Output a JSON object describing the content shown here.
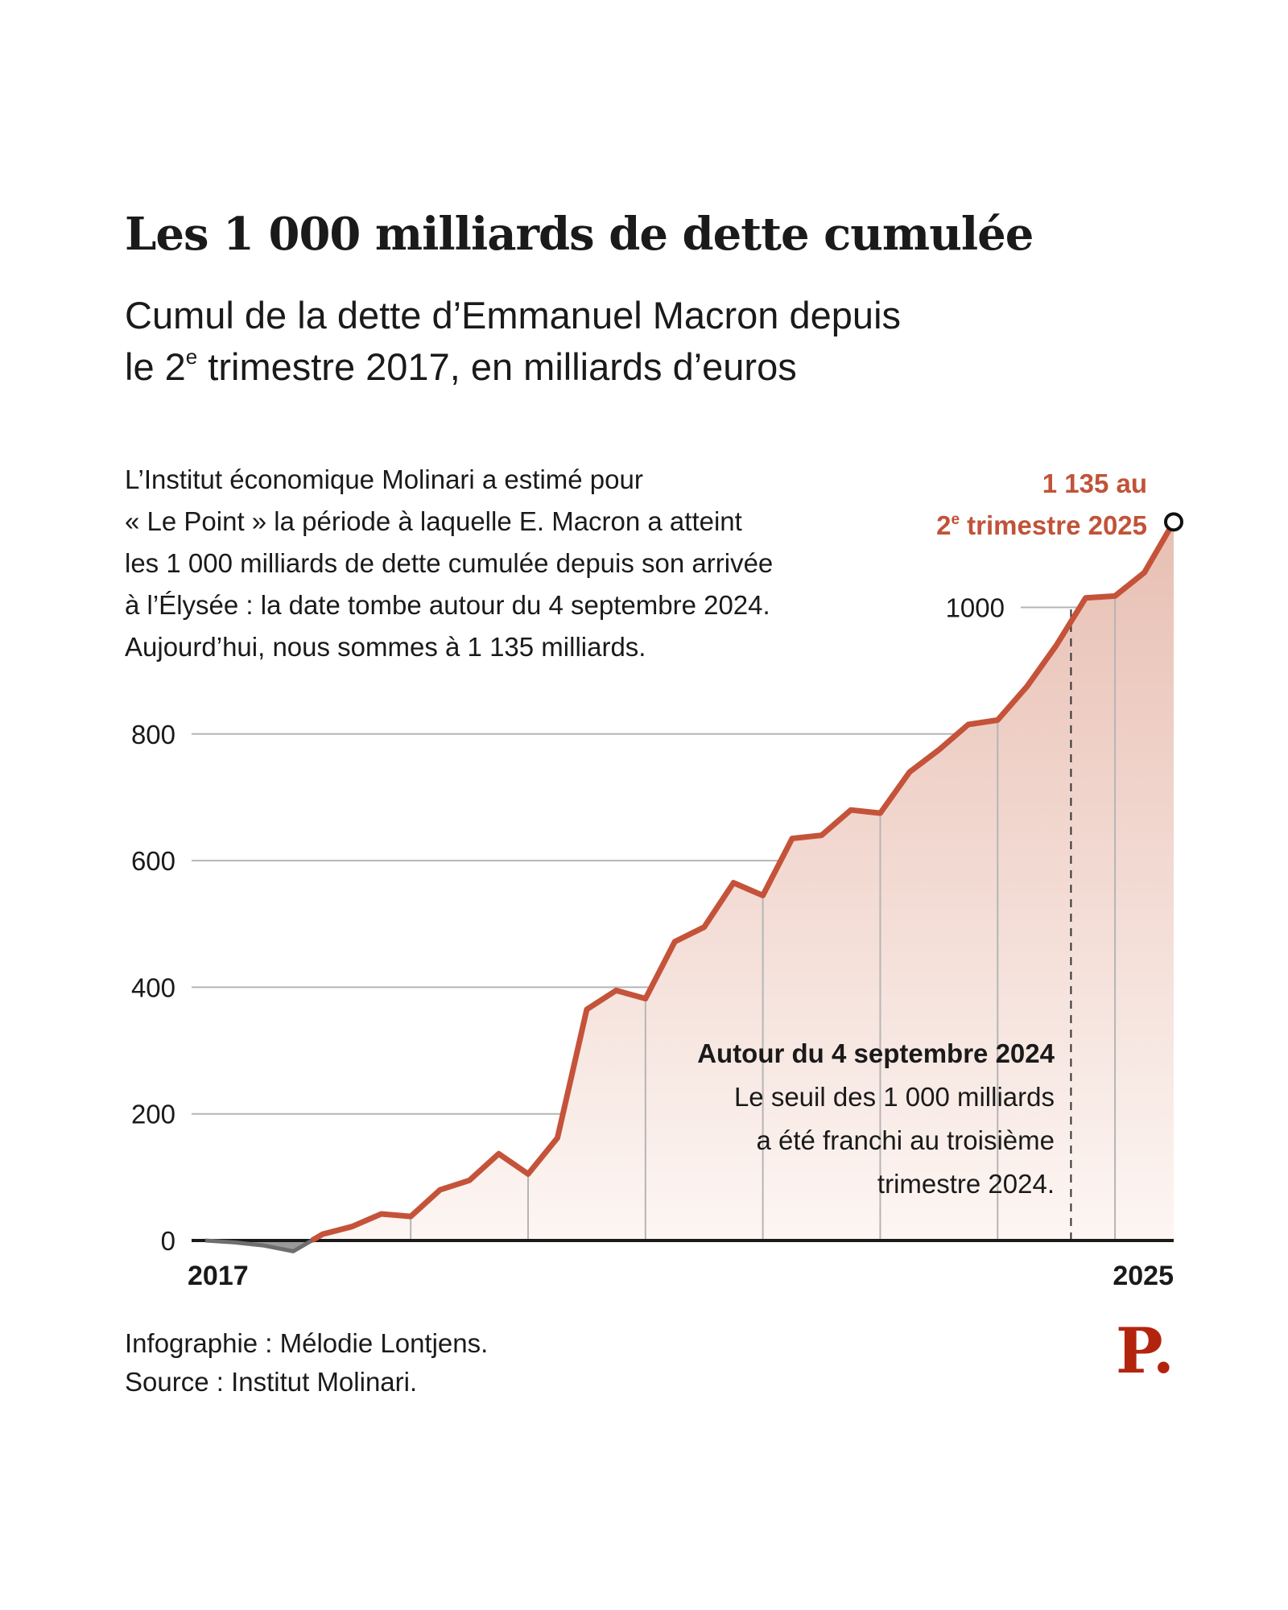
{
  "header": {
    "title": "Les  1 000 milliards de dette cumulée",
    "subtitle_line1": "Cumul de la dette d’Emmanuel Macron depuis",
    "subtitle_line2_pre": "le 2",
    "subtitle_line2_sup": "e",
    "subtitle_line2_post": " trimestre 2017, en milliards d’euros"
  },
  "intro": {
    "lines": [
      "L’Institut économique Molinari a estimé pour",
      "« Le Point » la période à laquelle E. Macron a atteint",
      "les 1 000 milliards de dette cumulée depuis son arrivée",
      "à l’Élysée : la date tombe autour du 4 septembre 2024.",
      "Aujourd’hui, nous sommes à 1 135 milliards."
    ]
  },
  "footer": {
    "credit": "Infographie : Mélodie Lontjens.",
    "source": "Source : Institut Molinari."
  },
  "logo": {
    "text": "P.",
    "color": "#b3240f"
  },
  "colors": {
    "line": "#c4533a",
    "negative_line": "#6e6e6e",
    "negative_fill": "#9a9a9a",
    "area_top": "#e8bfb3",
    "area_bottom": "#fdf6f3",
    "grid": "#b5b5b5",
    "axis": "#1a1a1a",
    "callout": "#c05339"
  },
  "chart_data": {
    "type": "area",
    "title": "Les 1 000 milliards de dette cumulée",
    "subtitle": "Cumul de la dette d’Emmanuel Macron depuis le 2e trimestre 2017, en milliards d’euros",
    "xlabel": "",
    "ylabel": "",
    "unit": "milliards d’euros",
    "x_start": "2017 T2",
    "x_end": "2025 T2",
    "x_tick_labels": [
      "2017",
      "2025"
    ],
    "y_ticks": [
      0,
      200,
      400,
      600,
      800,
      1000
    ],
    "y_tick_labels": [
      "0",
      "200",
      "400",
      "600",
      "800",
      "1000"
    ],
    "ylim": [
      -20,
      1150
    ],
    "grid": true,
    "values": [
      0,
      -3,
      -8,
      -17,
      10,
      22,
      42,
      38,
      80,
      95,
      137,
      105,
      162,
      365,
      395,
      382,
      472,
      495,
      565,
      545,
      635,
      640,
      680,
      675,
      740,
      775,
      815,
      822,
      875,
      940,
      1015,
      1018,
      1055,
      1135
    ],
    "threshold_index": 29.5,
    "annotations": {
      "end_label_line1": "1 135 au",
      "end_label_line2_pre": "2",
      "end_label_line2_sup": "e",
      "end_label_line2_post": " trimestre 2025",
      "threshold_title": "Autour du 4 septembre 2024",
      "threshold_lines": [
        "Le seuil des 1 000 milliards",
        "a été franchi au troisième",
        "trimestre 2024."
      ]
    }
  }
}
